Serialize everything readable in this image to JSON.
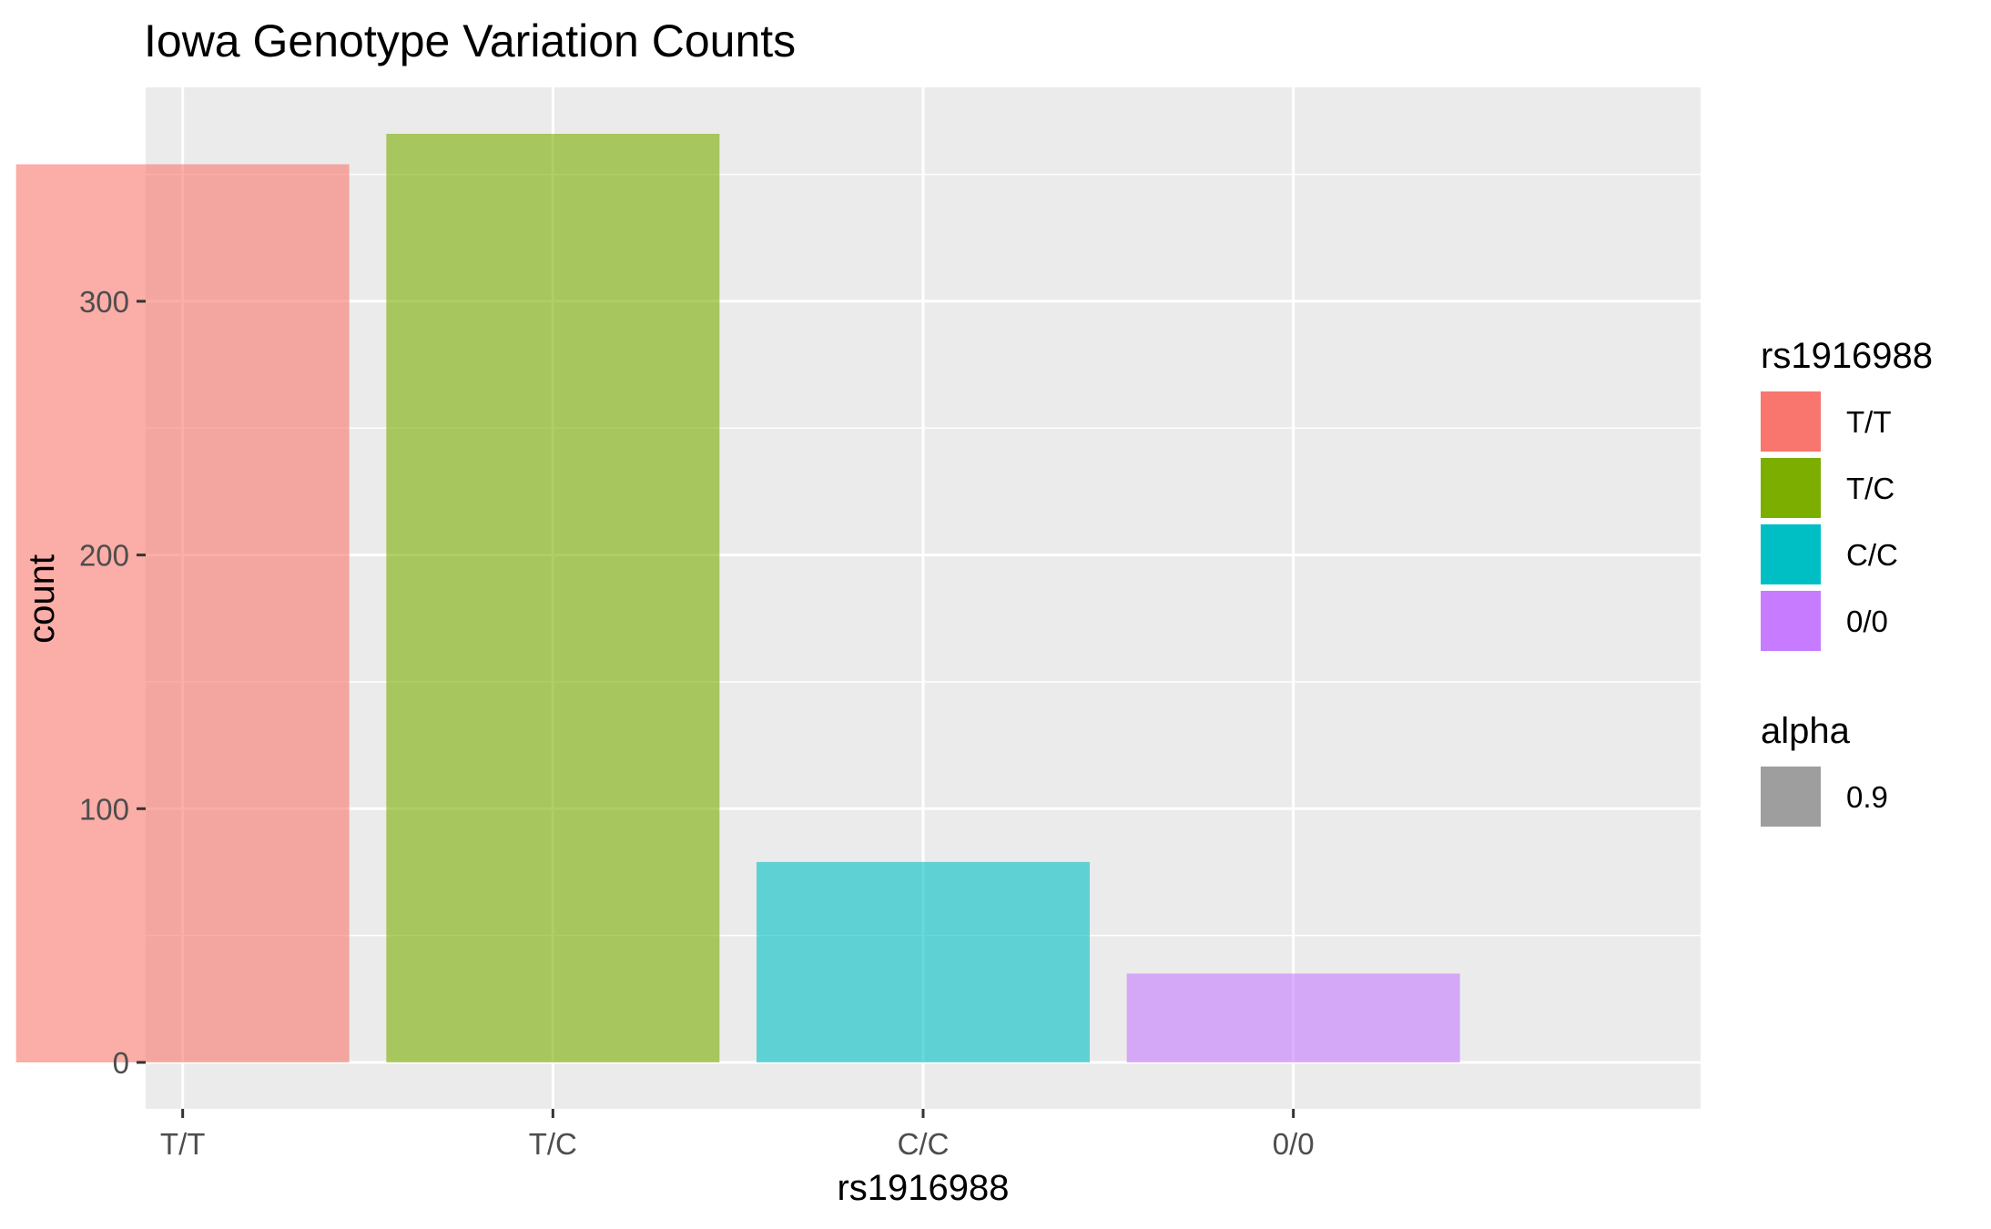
{
  "chart_data": {
    "type": "bar",
    "title": "Iowa Genotype Variation Counts",
    "xlabel": "rs1916988",
    "ylabel": "count",
    "categories": [
      "T/T",
      "T/C",
      "C/C",
      "0/0"
    ],
    "values": [
      354,
      366,
      79,
      35
    ],
    "colors": [
      "#F8766D",
      "#7CAE00",
      "#00BFC4",
      "#C77CFF"
    ],
    "bar_alpha": 0.6,
    "ylim": [
      -18.3,
      384.3
    ],
    "yticks": [
      0,
      100,
      200,
      300
    ],
    "ytick_labels": [
      "0",
      "100",
      "200",
      "300"
    ],
    "grid": true,
    "panel_background": "#EBEBEB",
    "grid_color": "#FFFFFF",
    "legend_position": "right",
    "legends": [
      {
        "title": "rs1916988",
        "items": [
          {
            "label": "T/T",
            "color": "#F8766D"
          },
          {
            "label": "T/C",
            "color": "#7CAE00"
          },
          {
            "label": "C/C",
            "color": "#00BFC4"
          },
          {
            "label": "0/0",
            "color": "#C77CFF"
          }
        ]
      },
      {
        "title": "alpha",
        "items": [
          {
            "label": "0.9",
            "color": "#9E9E9E"
          }
        ]
      }
    ]
  }
}
